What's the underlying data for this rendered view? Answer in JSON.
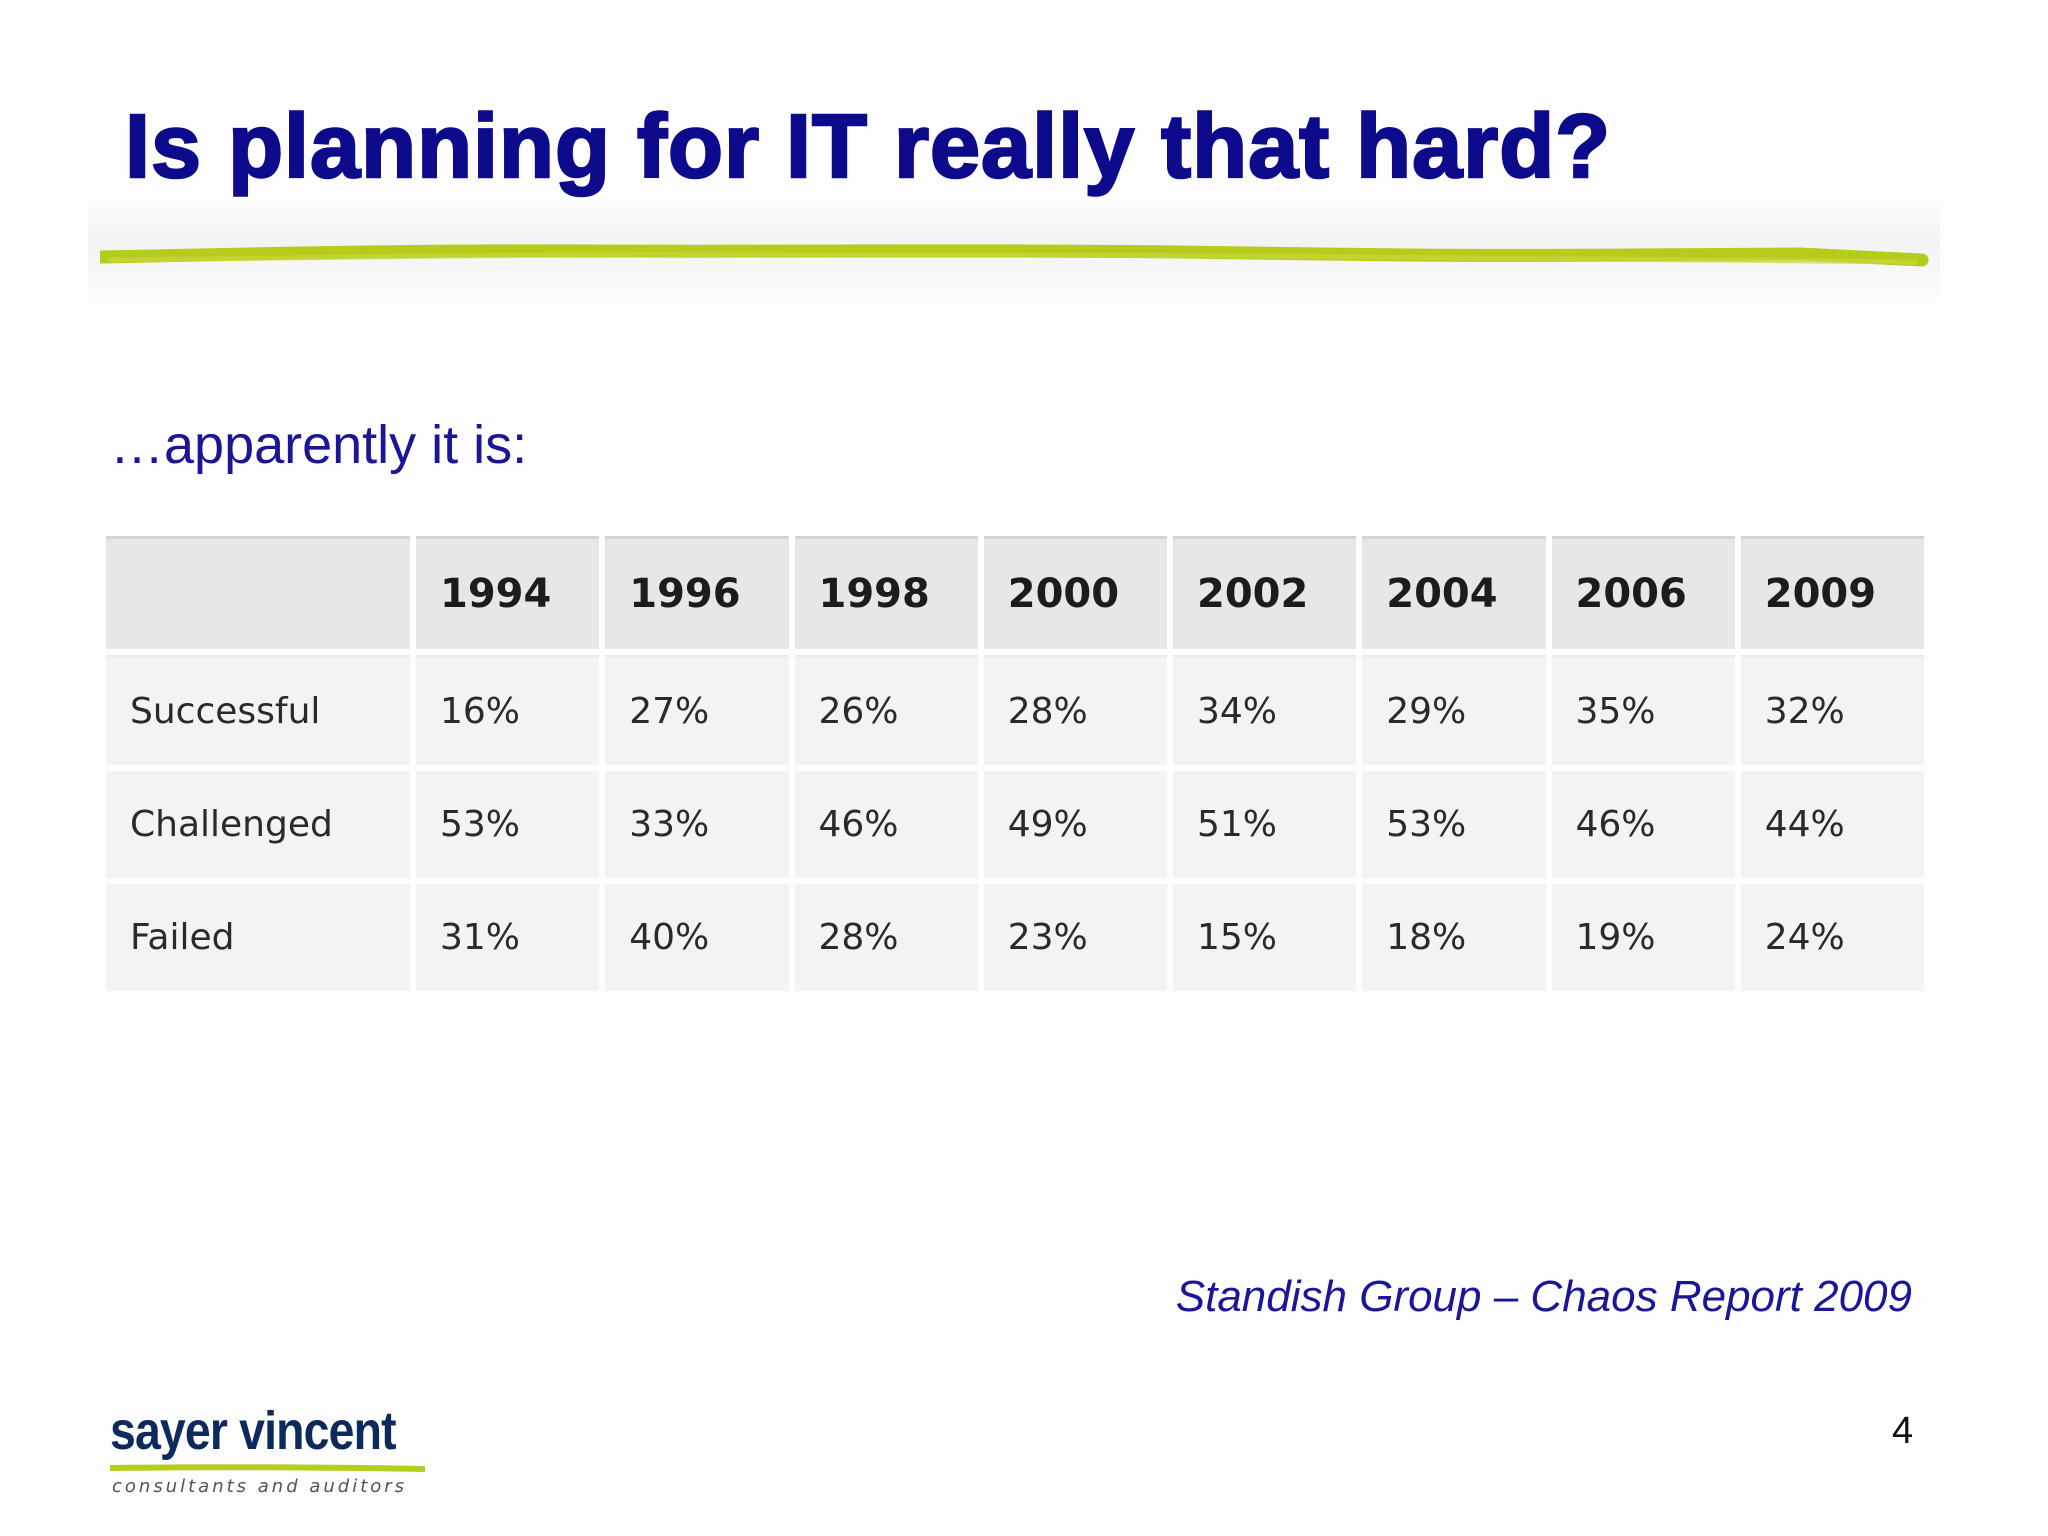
{
  "slide": {
    "title": "Is planning for IT really that hard?",
    "subtitle": "…apparently it is:",
    "source": "Standish Group – Chaos Report 2009",
    "page_number": "4",
    "accent_color": "#b5cc1d",
    "title_color": "#0d0a8c"
  },
  "table": {
    "header": [
      "",
      "1994",
      "1996",
      "1998",
      "2000",
      "2002",
      "2004",
      "2006",
      "2009"
    ],
    "rows": [
      [
        "Successful",
        "16%",
        "27%",
        "26%",
        "28%",
        "34%",
        "29%",
        "35%",
        "32%"
      ],
      [
        "Challenged",
        "53%",
        "33%",
        "46%",
        "49%",
        "51%",
        "53%",
        "46%",
        "44%"
      ],
      [
        "Failed",
        "31%",
        "40%",
        "28%",
        "23%",
        "15%",
        "18%",
        "19%",
        "24%"
      ]
    ]
  },
  "logo": {
    "name": "sayer vincent",
    "tagline": "consultants and auditors"
  }
}
